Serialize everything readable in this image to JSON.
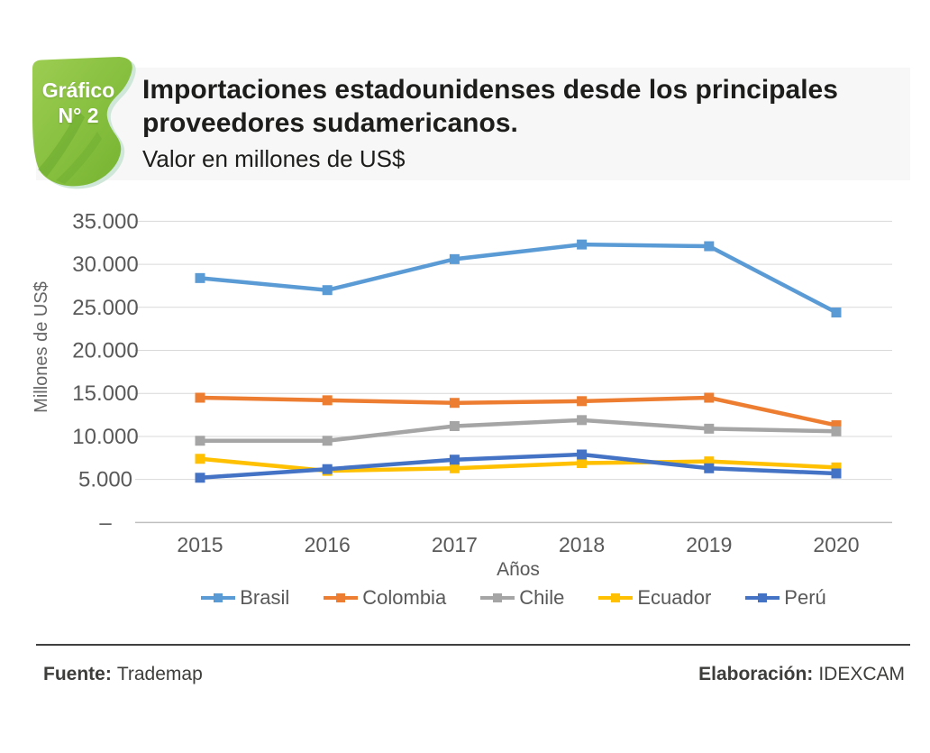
{
  "badge": {
    "line1": "Gráfico",
    "line2": "N° 2"
  },
  "header": {
    "title_line1": "Importaciones estadounidenses desde los principales",
    "title_line2": "proveedores sudamericanos.",
    "subtitle": "Valor en millones de US$"
  },
  "footer": {
    "source_label": "Fuente:",
    "source_value": "Trademap",
    "elaboration_label": "Elaboración:",
    "elaboration_value": "IDEXCAM"
  },
  "colors": {
    "page_background": "#ffffff",
    "header_band": "#f7f7f7",
    "badge_green_light": "#9ccd52",
    "badge_green_dark": "#74b32e",
    "badge_edge_mint": "#cfe7d8",
    "title_text": "#1d1d1b",
    "footer_rule": "#3f3f3f"
  },
  "chart_data": {
    "type": "line",
    "title": "Importaciones estadounidenses desde los principales proveedores sudamericanos. Valor en millones de US$",
    "categories": [
      "2015",
      "2016",
      "2017",
      "2018",
      "2019",
      "2020"
    ],
    "series": [
      {
        "name": "Brasil",
        "color": "#5B9BD5",
        "values": [
          28400,
          27000,
          30600,
          32300,
          32100,
          24400
        ]
      },
      {
        "name": "Colombia",
        "color": "#ED7D31",
        "values": [
          14500,
          14200,
          13900,
          14100,
          14500,
          11300
        ]
      },
      {
        "name": "Chile",
        "color": "#A5A5A5",
        "values": [
          9500,
          9500,
          11200,
          11900,
          10900,
          10600
        ]
      },
      {
        "name": "Ecuador",
        "color": "#FFC000",
        "values": [
          7400,
          6000,
          6300,
          6900,
          7100,
          6400
        ]
      },
      {
        "name": "Perú",
        "color": "#4472C4",
        "values": [
          5200,
          6200,
          7300,
          7900,
          6300,
          5700
        ]
      }
    ],
    "xlabel": "Años",
    "ylabel": "Millones de US$",
    "ylim": [
      0,
      35000
    ],
    "ytick_step": 5000,
    "ytick_labels": [
      "–",
      "5.000",
      "10.000",
      "15.000",
      "20.000",
      "25.000",
      "30.000",
      "35.000"
    ],
    "grid": true,
    "legend_position": "bottom",
    "marker": "square",
    "style": {
      "grid_line": "#d9d9d9",
      "axis_line": "#bfbfbf",
      "tick_color": "#595959",
      "axis_title_color": "#666666",
      "line_width": 4.5,
      "marker_size": 11
    }
  }
}
